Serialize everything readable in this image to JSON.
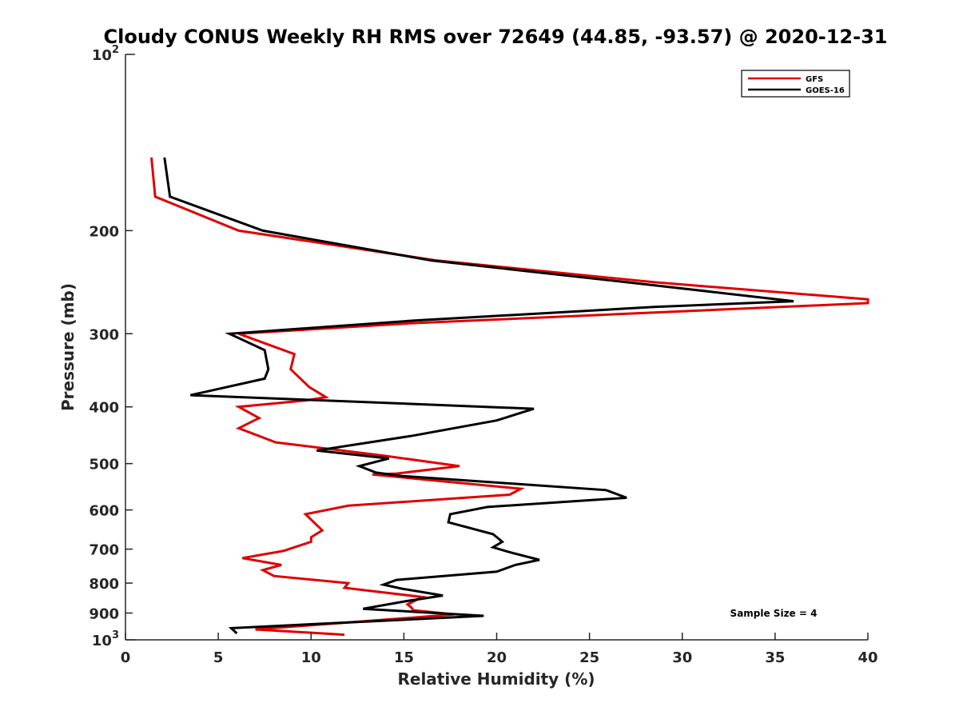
{
  "chart_data": {
    "type": "line",
    "title": "Cloudy CONUS Weekly RH RMS over 72649 (44.85, -93.57) @ 2020-12-31",
    "xlabel": "Relative Humidity (%)",
    "ylabel": "Pressure (mb)",
    "xlim": [
      0,
      40
    ],
    "ylim": [
      100,
      1000
    ],
    "yscale": "log",
    "y_reversed": true,
    "grid": false,
    "legend_position": "top-right",
    "x_ticks": [
      {
        "value": 0,
        "label": "0"
      },
      {
        "value": 5,
        "label": "5"
      },
      {
        "value": 10,
        "label": "10"
      },
      {
        "value": 15,
        "label": "15"
      },
      {
        "value": 20,
        "label": "20"
      },
      {
        "value": 25,
        "label": "25"
      },
      {
        "value": 30,
        "label": "30"
      },
      {
        "value": 35,
        "label": "35"
      },
      {
        "value": 40,
        "label": "40"
      }
    ],
    "y_ticks": [
      {
        "value": 200,
        "label": "200"
      },
      {
        "value": 300,
        "label": "300"
      },
      {
        "value": 400,
        "label": "400"
      },
      {
        "value": 500,
        "label": "500"
      },
      {
        "value": 600,
        "label": "600"
      },
      {
        "value": 700,
        "label": "700"
      },
      {
        "value": 800,
        "label": "800"
      },
      {
        "value": 900,
        "label": "900"
      }
    ],
    "y_power_ticks": [
      {
        "value": 100,
        "base": "10",
        "exp": "2"
      },
      {
        "value": 1000,
        "base": "10",
        "exp": "3"
      }
    ],
    "annotation": "Sample Size = 4",
    "series": [
      {
        "name": "GFS",
        "color": "#e00000",
        "points": [
          [
            1.4,
            150
          ],
          [
            1.6,
            175
          ],
          [
            6.1,
            200
          ],
          [
            16.8,
            225
          ],
          [
            28.5,
            245
          ],
          [
            40.0,
            262
          ],
          [
            40.0,
            266
          ],
          [
            29.6,
            275
          ],
          [
            15.3,
            288
          ],
          [
            6.1,
            300
          ],
          [
            9.1,
            325
          ],
          [
            8.9,
            345
          ],
          [
            9.9,
            370
          ],
          [
            10.8,
            385
          ],
          [
            9.7,
            390
          ],
          [
            6.1,
            400
          ],
          [
            7.2,
            418
          ],
          [
            6.1,
            435
          ],
          [
            8.1,
            460
          ],
          [
            14.0,
            485
          ],
          [
            18.0,
            505
          ],
          [
            14.6,
            520
          ],
          [
            13.3,
            522
          ],
          [
            21.3,
            552
          ],
          [
            20.7,
            565
          ],
          [
            12.0,
            590
          ],
          [
            9.7,
            610
          ],
          [
            10.6,
            650
          ],
          [
            10.0,
            668
          ],
          [
            10.0,
            680
          ],
          [
            8.5,
            705
          ],
          [
            6.3,
            725
          ],
          [
            8.4,
            745
          ],
          [
            7.4,
            760
          ],
          [
            8.0,
            778
          ],
          [
            12.0,
            800
          ],
          [
            11.8,
            815
          ],
          [
            16.0,
            845
          ],
          [
            15.2,
            870
          ],
          [
            15.4,
            880
          ],
          [
            15.5,
            890
          ],
          [
            17.7,
            905
          ],
          [
            7.0,
            960
          ],
          [
            11.8,
            980
          ]
        ]
      },
      {
        "name": "GOES-16",
        "color": "#000000",
        "points": [
          [
            2.1,
            150
          ],
          [
            2.4,
            175
          ],
          [
            7.4,
            200
          ],
          [
            16.5,
            225
          ],
          [
            28.5,
            248
          ],
          [
            36.0,
            264
          ],
          [
            28.5,
            270
          ],
          [
            15.5,
            285
          ],
          [
            5.6,
            300
          ],
          [
            7.5,
            320
          ],
          [
            7.7,
            345
          ],
          [
            7.5,
            358
          ],
          [
            3.5,
            382
          ],
          [
            22.0,
            403
          ],
          [
            20.0,
            422
          ],
          [
            15.5,
            448
          ],
          [
            10.3,
            475
          ],
          [
            14.2,
            490
          ],
          [
            12.6,
            505
          ],
          [
            13.5,
            518
          ],
          [
            14.9,
            525
          ],
          [
            25.9,
            555
          ],
          [
            27.0,
            572
          ],
          [
            19.5,
            593
          ],
          [
            17.5,
            610
          ],
          [
            17.4,
            630
          ],
          [
            19.8,
            660
          ],
          [
            20.3,
            680
          ],
          [
            19.8,
            695
          ],
          [
            20.8,
            710
          ],
          [
            22.3,
            730
          ],
          [
            21.0,
            745
          ],
          [
            20.0,
            765
          ],
          [
            14.6,
            790
          ],
          [
            13.9,
            805
          ],
          [
            14.9,
            818
          ],
          [
            17.1,
            840
          ],
          [
            15.0,
            860
          ],
          [
            12.8,
            885
          ],
          [
            19.3,
            910
          ],
          [
            5.7,
            955
          ],
          [
            6.0,
            975
          ]
        ]
      }
    ]
  }
}
